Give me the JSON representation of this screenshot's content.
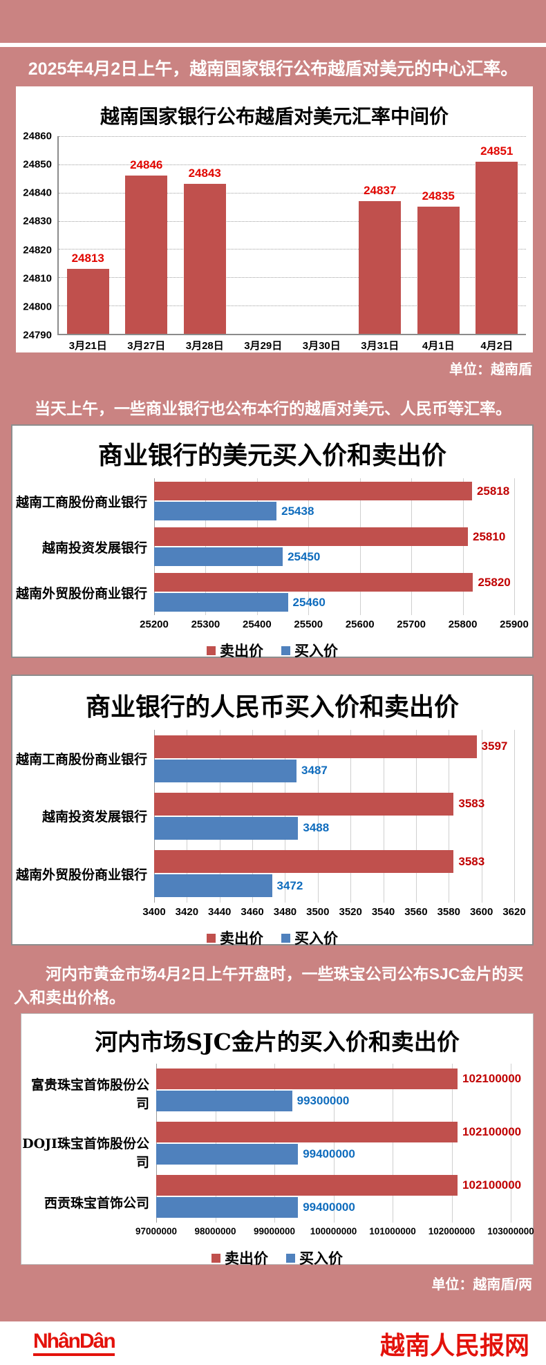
{
  "page": {
    "background_color": "#ca8382",
    "sell_color": "#c0504d",
    "buy_color": "#4f81bd",
    "sell_label_color": "#c00000",
    "buy_label_color": "#0f6cbd",
    "footer_red": "#e3120b"
  },
  "texts": {
    "intro1": "2025年4月2日上午，越南国家银行公布越盾对美元的中心汇率。",
    "intro2": "当天上午，一些商业银行也公布本行的越盾对美元、人民币等汇率。",
    "intro3": "河内市黄金市场4月2日上午开盘时，一些珠宝公司公布SJC金片的买入和卖出价格。",
    "unit1": "单位：越南盾",
    "unit2": "单位：越南盾/两"
  },
  "footer": {
    "logo": "NhânDân",
    "site": "越南人民报网"
  },
  "chart_data": [
    {
      "type": "bar",
      "title": "越南国家银行公布越盾对美元汇率中间价",
      "categories": [
        "3月21日",
        "3月27日",
        "3月28日",
        "3月29日",
        "3月30日",
        "3月31日",
        "4月1日",
        "4月2日"
      ],
      "values": [
        24813,
        24846,
        24843,
        null,
        null,
        24837,
        24835,
        24851
      ],
      "ylim": [
        24790,
        24860
      ],
      "ytick_step": 10,
      "bar_color": "#c0504d",
      "label_color": "#e10600",
      "grid": "horizontal-dotted",
      "unit": "越南盾"
    },
    {
      "type": "bar-horizontal",
      "title": "商业银行的美元买入价和卖出价",
      "categories": [
        "越南工商股份商业银行",
        "越南投资发展银行",
        "越南外贸股份商业银行"
      ],
      "series": [
        {
          "name": "卖出价",
          "color": "#c0504d",
          "label_color": "#c00000",
          "values": [
            25818,
            25810,
            25820
          ]
        },
        {
          "name": "买入价",
          "color": "#4f81bd",
          "label_color": "#0f6cbd",
          "values": [
            25438,
            25450,
            25460
          ]
        }
      ],
      "xlim": [
        25200,
        25900
      ],
      "xtick_step": 100,
      "grid": "vertical",
      "legend_position": "bottom"
    },
    {
      "type": "bar-horizontal",
      "title": "商业银行的人民币买入价和卖出价",
      "categories": [
        "越南工商股份商业银行",
        "越南投资发展银行",
        "越南外贸股份商业银行"
      ],
      "series": [
        {
          "name": "卖出价",
          "color": "#c0504d",
          "label_color": "#c00000",
          "values": [
            3597,
            3583,
            3583
          ]
        },
        {
          "name": "买入价",
          "color": "#4f81bd",
          "label_color": "#0f6cbd",
          "values": [
            3487,
            3488,
            3472
          ]
        }
      ],
      "xlim": [
        3400,
        3620
      ],
      "xtick_step": 20,
      "grid": "vertical",
      "legend_position": "bottom"
    },
    {
      "type": "bar-horizontal",
      "title": "河内市场SJC金片的买入价和卖出价",
      "categories": [
        "富贵珠宝首饰股份公司",
        "DOJI珠宝首饰股份公司",
        "西贡珠宝首饰公司"
      ],
      "series": [
        {
          "name": "卖出价",
          "color": "#c0504d",
          "label_color": "#c00000",
          "values": [
            102100000,
            102100000,
            102100000
          ]
        },
        {
          "name": "买入价",
          "color": "#4f81bd",
          "label_color": "#0f6cbd",
          "values": [
            99300000,
            99400000,
            99400000
          ]
        }
      ],
      "xlim": [
        97000000,
        103000000
      ],
      "xtick_step": 1000000,
      "grid": "vertical",
      "legend_position": "bottom",
      "unit": "越南盾/两"
    }
  ]
}
